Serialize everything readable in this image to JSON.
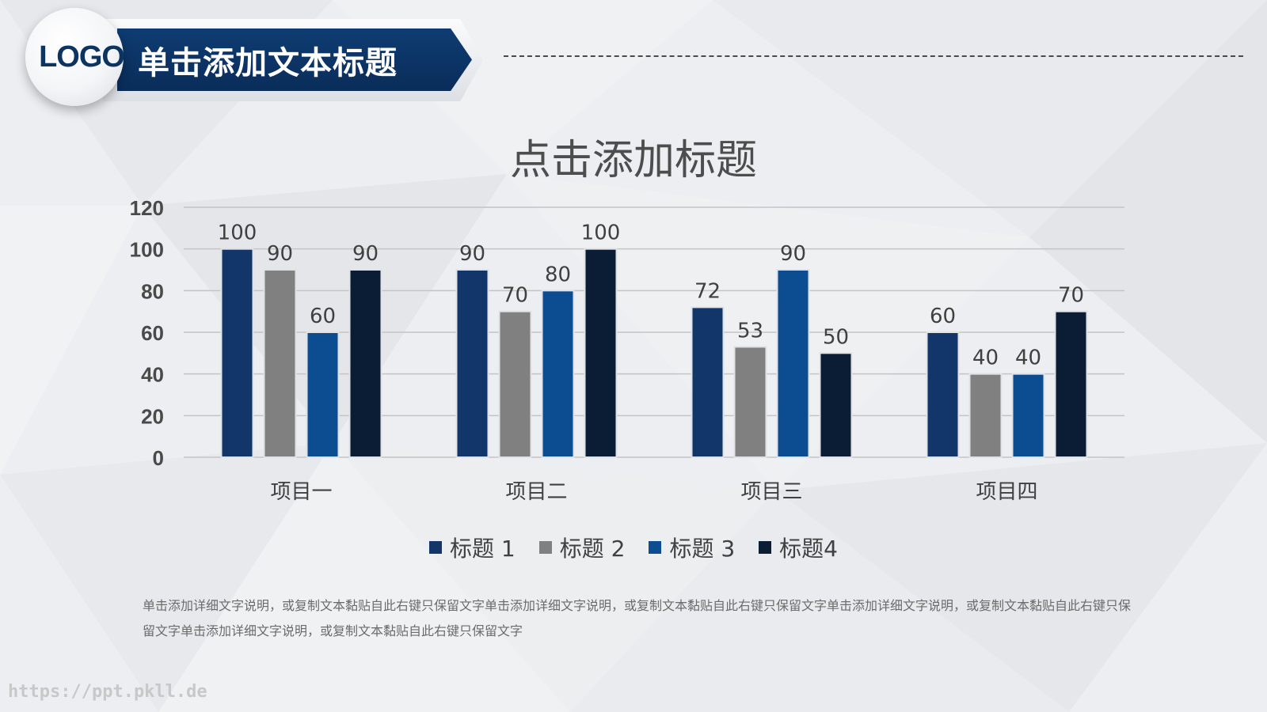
{
  "header": {
    "logo": "LOGO",
    "title": "单击添加文本标题"
  },
  "colors": {
    "series1": "#12366a",
    "series2": "#808080",
    "series3": "#0c4d92",
    "series4": "#0b1d35",
    "banner": "#0d3461"
  },
  "chart_data": {
    "type": "bar",
    "title": "点击添加标题",
    "categories": [
      "项目一",
      "项目二",
      "项目三",
      "项目四"
    ],
    "series": [
      {
        "name": "标题 1",
        "values": [
          100,
          90,
          72,
          60
        ]
      },
      {
        "name": "标题 2",
        "values": [
          90,
          70,
          53,
          40
        ]
      },
      {
        "name": "标题 3",
        "values": [
          60,
          80,
          90,
          40
        ]
      },
      {
        "name": "标题4",
        "values": [
          90,
          100,
          50,
          70
        ]
      }
    ],
    "ylim": [
      0,
      120
    ],
    "yticks": [
      0,
      20,
      40,
      60,
      80,
      100,
      120
    ],
    "grid": true,
    "legend_position": "bottom",
    "data_labels": true
  },
  "legend": [
    {
      "label": "标题 1"
    },
    {
      "label": "标题 2"
    },
    {
      "label": "标题 3"
    },
    {
      "label": "标题4"
    }
  ],
  "description": "单击添加详细文字说明，或复制文本黏贴自此右键只保留文字单击添加详细文字说明，或复制文本黏贴自此右键只保留文字单击添加详细文字说明，或复制文本黏贴自此右键只保留文字单击添加详细文字说明，或复制文本黏贴自此右键只保留文字",
  "watermark": "https://ppt.pkll.de"
}
